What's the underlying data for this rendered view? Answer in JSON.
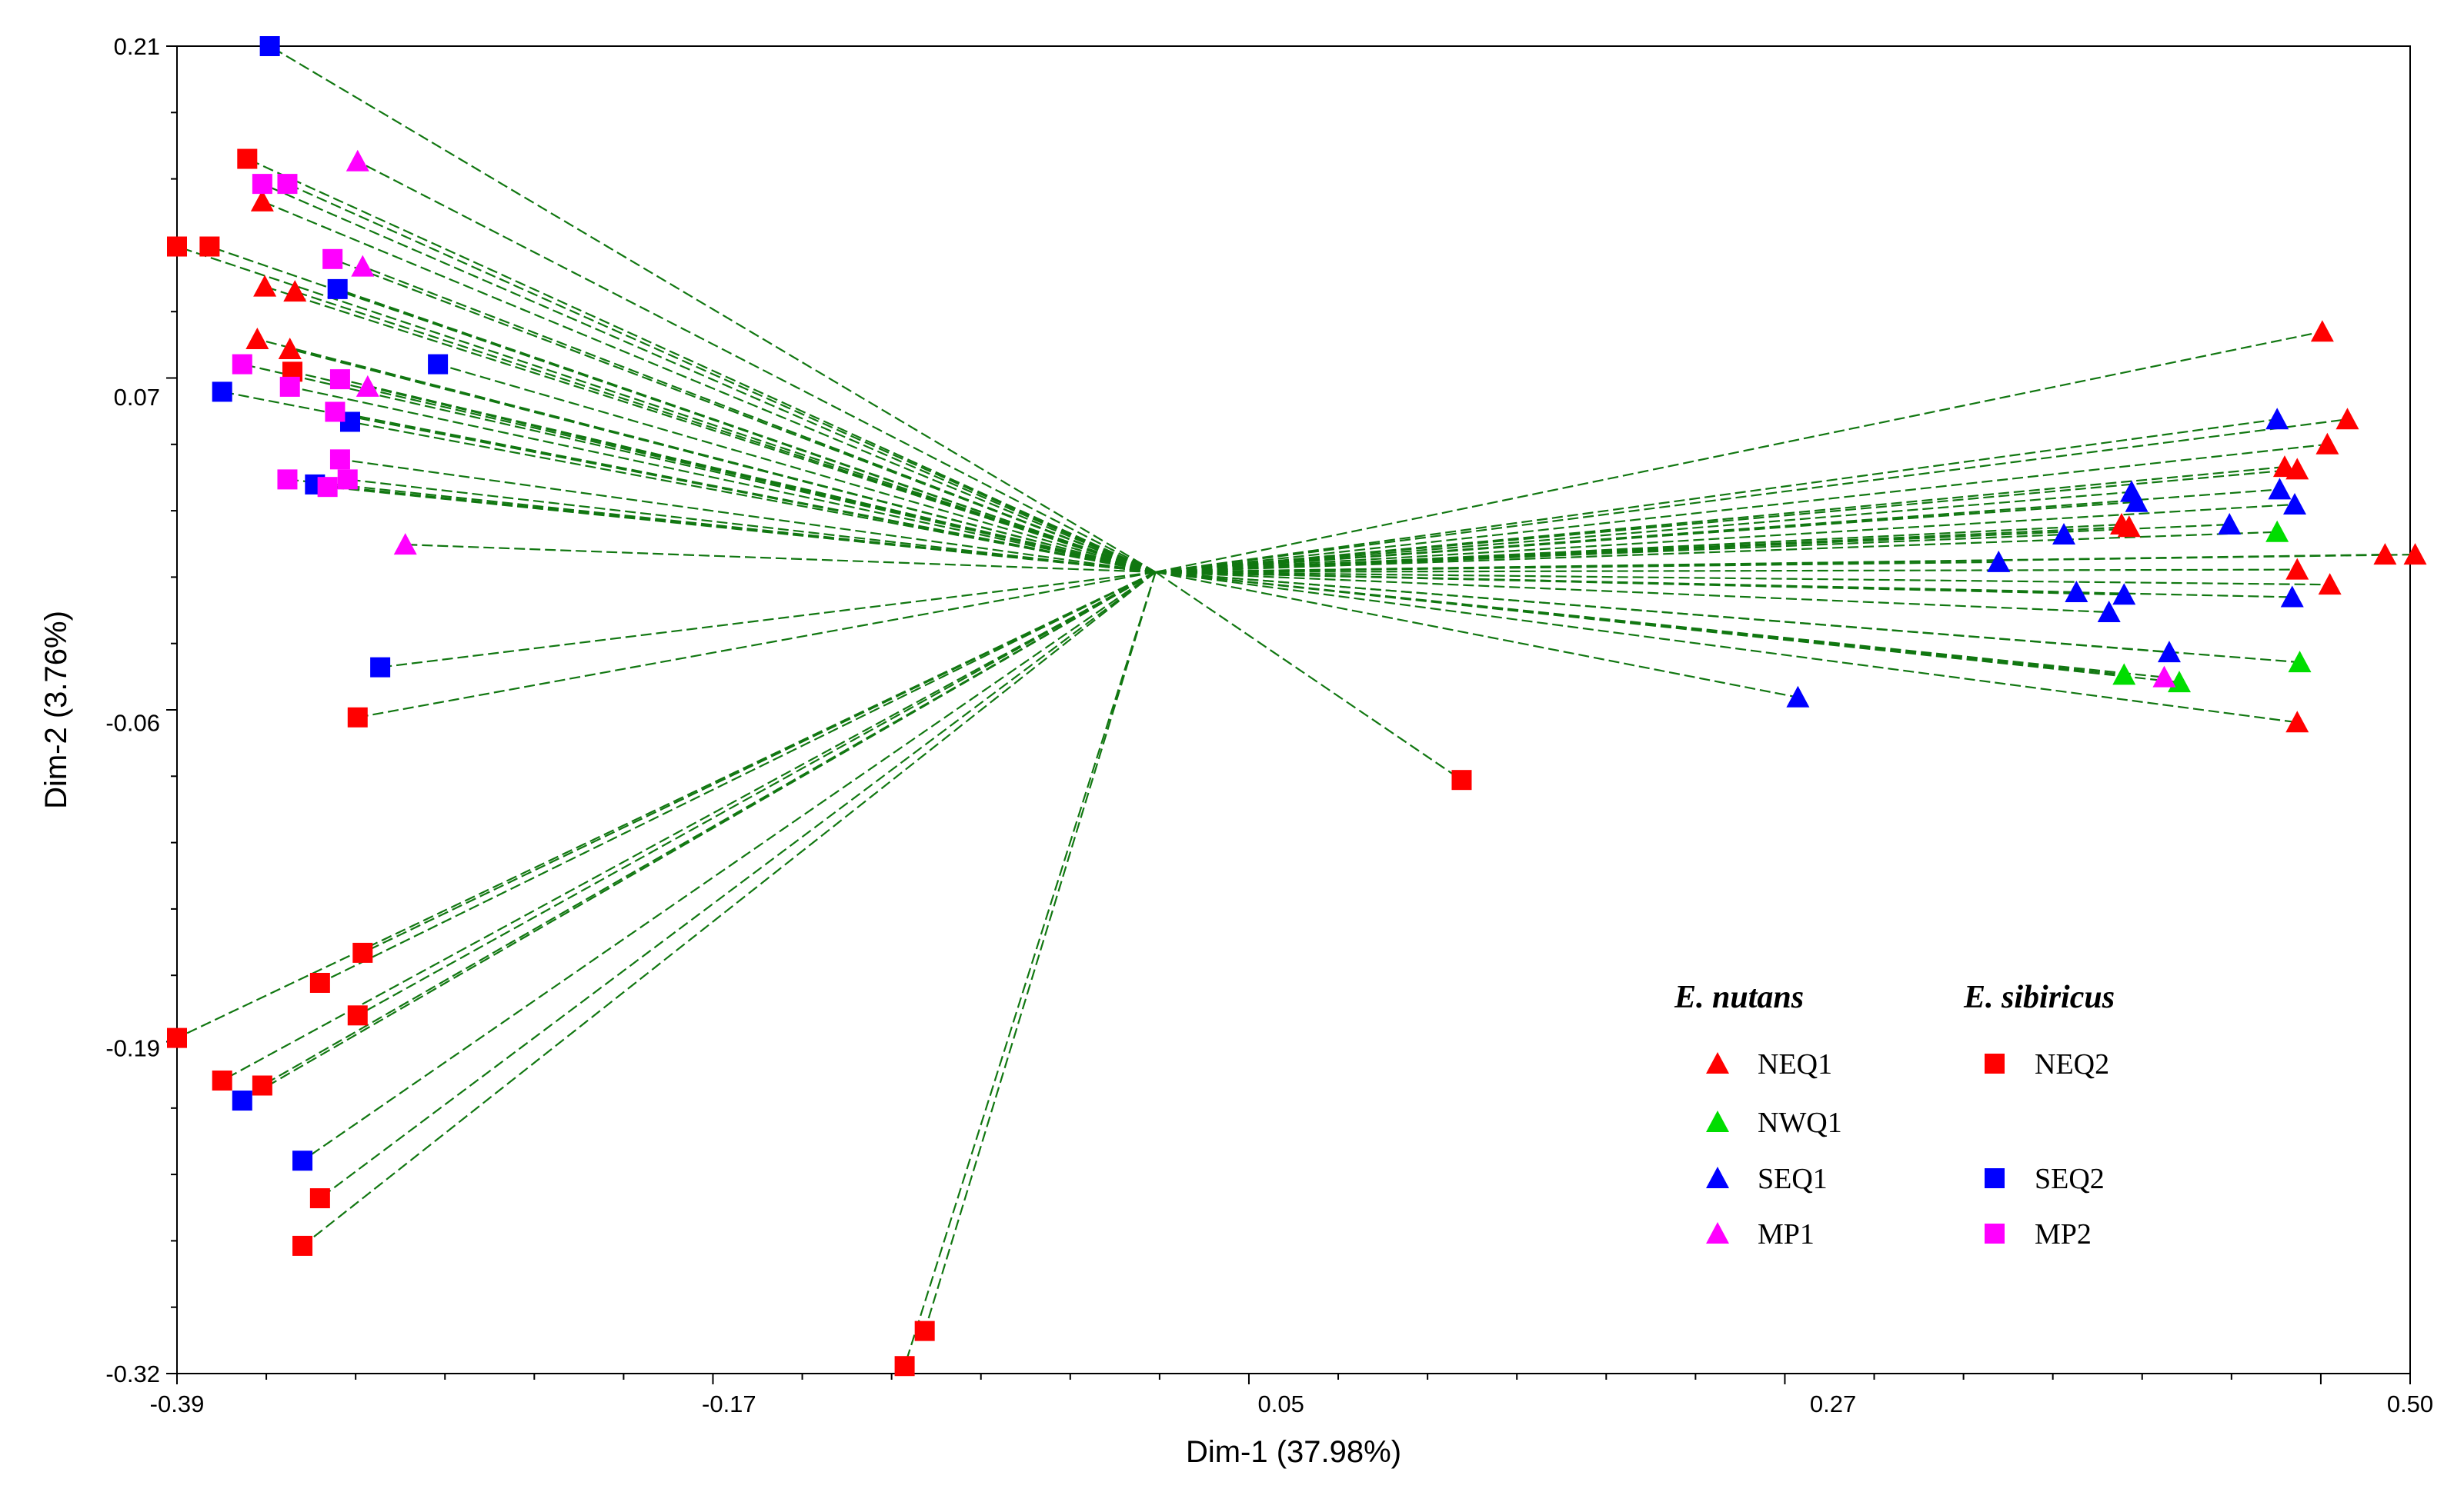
{
  "chart_data": {
    "type": "scatter",
    "title": "",
    "xlabel": "Dim-1 (37.98%)",
    "ylabel": "Dim-2 (3.76%)",
    "xlim": [
      -0.39,
      0.5
    ],
    "ylim": [
      -0.32,
      0.21
    ],
    "x_ticks": [
      "-0.39",
      "-0.17",
      "0.05",
      "0.27",
      "0.50"
    ],
    "y_ticks": [
      "0.21",
      "0.07",
      "-0.06",
      "-0.19",
      "-0.32"
    ],
    "x_tick_values": [
      -0.39,
      -0.17,
      0.05,
      0.27,
      0.5
    ],
    "y_tick_values": [
      0.21,
      0.07,
      -0.06,
      -0.19,
      -0.32
    ],
    "grid": false,
    "biplot_origin": [
      0.0,
      0.0
    ],
    "legend": {
      "placement": "bottom-right",
      "groups": [
        {
          "heading": "E. nutans",
          "entries": [
            {
              "label": "NEQ1",
              "series": "NEQ1",
              "row": 0
            },
            {
              "label": "NWQ1",
              "series": "NWQ1",
              "row": 1
            },
            {
              "label": "SEQ1",
              "series": "SEQ1",
              "row": 2
            },
            {
              "label": "MP1",
              "series": "MP1",
              "row": 3
            }
          ]
        },
        {
          "heading": "E. sibiricus",
          "entries": [
            {
              "label": "NEQ2",
              "series": "NEQ2",
              "row": 0
            },
            {
              "label": "SEQ2",
              "series": "SEQ2",
              "row": 2
            },
            {
              "label": "MP2",
              "series": "MP2",
              "row": 3
            }
          ]
        }
      ]
    },
    "series": [
      {
        "name": "NEQ1",
        "marker": "triangle",
        "color": "#ff0000",
        "points": [
          [
            -0.356,
            0.148
          ],
          [
            -0.355,
            0.114
          ],
          [
            -0.345,
            0.089
          ],
          [
            -0.358,
            0.093
          ],
          [
            -0.343,
            0.112
          ],
          [
            0.465,
            0.096
          ],
          [
            0.475,
            0.061
          ],
          [
            0.467,
            0.051
          ],
          [
            0.45,
            0.042
          ],
          [
            0.455,
            0.041
          ],
          [
            0.49,
            0.007
          ],
          [
            0.502,
            0.007
          ],
          [
            0.455,
            0.001
          ],
          [
            0.468,
            -0.005
          ],
          [
            0.385,
            0.019
          ],
          [
            0.388,
            0.018
          ],
          [
            0.455,
            -0.06
          ]
        ]
      },
      {
        "name": "NWQ1",
        "marker": "triangle",
        "color": "#00dd00",
        "points": [
          [
            0.447,
            0.016
          ],
          [
            0.456,
            -0.036
          ],
          [
            0.386,
            -0.041
          ],
          [
            0.408,
            -0.044
          ]
        ]
      },
      {
        "name": "SEQ1",
        "marker": "triangle",
        "color": "#0000ff",
        "points": [
          [
            0.447,
            0.061
          ],
          [
            0.389,
            0.032
          ],
          [
            0.391,
            0.028
          ],
          [
            0.448,
            0.033
          ],
          [
            0.454,
            0.027
          ],
          [
            0.428,
            0.019
          ],
          [
            0.362,
            0.015
          ],
          [
            0.336,
            0.004
          ],
          [
            0.367,
            -0.008
          ],
          [
            0.386,
            -0.009
          ],
          [
            0.38,
            -0.016
          ],
          [
            0.404,
            -0.032
          ],
          [
            0.453,
            -0.01
          ],
          [
            0.256,
            -0.05
          ]
        ]
      },
      {
        "name": "MP1",
        "marker": "triangle",
        "color": "#ff00ff",
        "points": [
          [
            -0.318,
            0.164
          ],
          [
            -0.316,
            0.122
          ],
          [
            -0.314,
            0.074
          ],
          [
            -0.299,
            0.011
          ],
          [
            0.402,
            -0.042
          ]
        ]
      },
      {
        "name": "NEQ2",
        "marker": "square",
        "color": "#ff0000",
        "points": [
          [
            -0.362,
            0.165
          ],
          [
            -0.39,
            0.13
          ],
          [
            -0.377,
            0.13
          ],
          [
            -0.344,
            0.08
          ],
          [
            -0.318,
            -0.058
          ],
          [
            0.122,
            -0.083
          ],
          [
            -0.316,
            -0.152
          ],
          [
            -0.333,
            -0.164
          ],
          [
            -0.318,
            -0.177
          ],
          [
            -0.39,
            -0.186
          ],
          [
            -0.372,
            -0.203
          ],
          [
            -0.356,
            -0.205
          ],
          [
            -0.333,
            -0.25
          ],
          [
            -0.34,
            -0.269
          ],
          [
            -0.092,
            -0.303
          ],
          [
            -0.1,
            -0.317
          ]
        ]
      },
      {
        "name": "SEQ2",
        "marker": "square",
        "color": "#0000ff",
        "points": [
          [
            -0.353,
            0.21
          ],
          [
            -0.326,
            0.113
          ],
          [
            -0.286,
            0.083
          ],
          [
            -0.372,
            0.072
          ],
          [
            -0.321,
            0.06
          ],
          [
            -0.335,
            0.035
          ],
          [
            -0.309,
            -0.038
          ],
          [
            -0.364,
            -0.211
          ],
          [
            -0.34,
            -0.235
          ]
        ]
      },
      {
        "name": "MP2",
        "marker": "square",
        "color": "#ff00ff",
        "points": [
          [
            -0.356,
            0.155
          ],
          [
            -0.346,
            0.155
          ],
          [
            -0.328,
            0.125
          ],
          [
            -0.364,
            0.083
          ],
          [
            -0.325,
            0.077
          ],
          [
            -0.345,
            0.074
          ],
          [
            -0.327,
            0.064
          ],
          [
            -0.325,
            0.045
          ],
          [
            -0.346,
            0.037
          ],
          [
            -0.322,
            0.037
          ],
          [
            -0.33,
            0.034
          ]
        ]
      }
    ]
  }
}
